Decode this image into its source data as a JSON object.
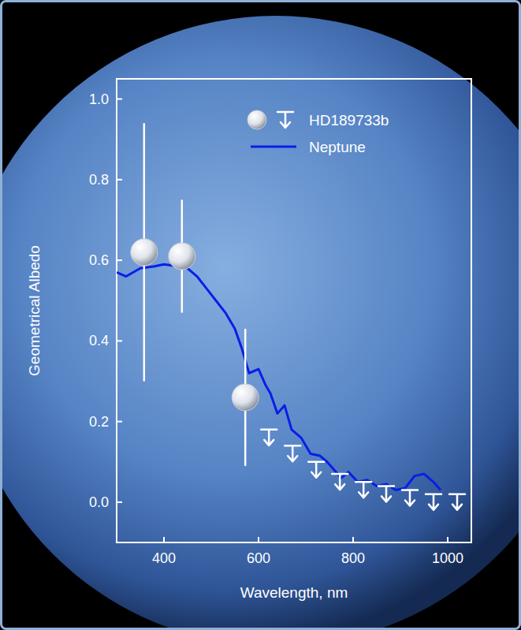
{
  "chart_data": {
    "type": "line",
    "x_label": "Wavelength, nm",
    "y_label": "Geometrical Albedo",
    "xlim": [
      300,
      1050
    ],
    "ylim": [
      -0.1,
      1.05
    ],
    "xticks": [
      400,
      600,
      800,
      1000
    ],
    "yticks": [
      {
        "value": 0,
        "label": "0.0"
      },
      0.2,
      0.4,
      0.6,
      0.8,
      {
        "value": 1,
        "label": "1.0"
      }
    ],
    "legend": "upper right",
    "grid": false,
    "series": [
      {
        "name": "HD189733b",
        "type": "scatter",
        "color": "#ffffff",
        "marker": "sphere",
        "x": [
          358,
          438,
          572,
          622,
          672,
          722,
          772,
          822,
          870,
          920,
          970,
          1020
        ],
        "values": [
          0.62,
          0.61,
          0.26,
          0.18,
          0.14,
          0.1,
          0.07,
          0.05,
          0.04,
          0.03,
          0.02,
          0.02
        ],
        "errors": [
          0.32,
          0.14,
          0.17,
          null,
          null,
          null,
          null,
          null,
          null,
          null,
          null,
          null
        ],
        "upper_limits": [
          false,
          false,
          false,
          true,
          true,
          true,
          true,
          true,
          true,
          true,
          true,
          true
        ]
      },
      {
        "name": "Neptune",
        "type": "line",
        "color": "#0a1ee6",
        "line_style": "solid",
        "x": [
          300,
          320,
          350,
          380,
          400,
          430,
          450,
          470,
          490,
          510,
          530,
          550,
          565,
          580,
          600,
          615,
          625,
          640,
          655,
          670,
          690,
          710,
          730,
          745,
          760,
          775,
          790,
          810,
          830,
          850,
          870,
          890,
          910,
          930,
          950,
          970,
          985
        ],
        "values": [
          0.57,
          0.56,
          0.58,
          0.585,
          0.59,
          0.585,
          0.58,
          0.56,
          0.53,
          0.5,
          0.47,
          0.43,
          0.38,
          0.32,
          0.33,
          0.29,
          0.27,
          0.22,
          0.24,
          0.18,
          0.16,
          0.12,
          0.115,
          0.1,
          0.08,
          0.06,
          0.075,
          0.05,
          0.055,
          0.04,
          0.045,
          0.03,
          0.035,
          0.065,
          0.07,
          0.05,
          0.03
        ]
      }
    ]
  }
}
